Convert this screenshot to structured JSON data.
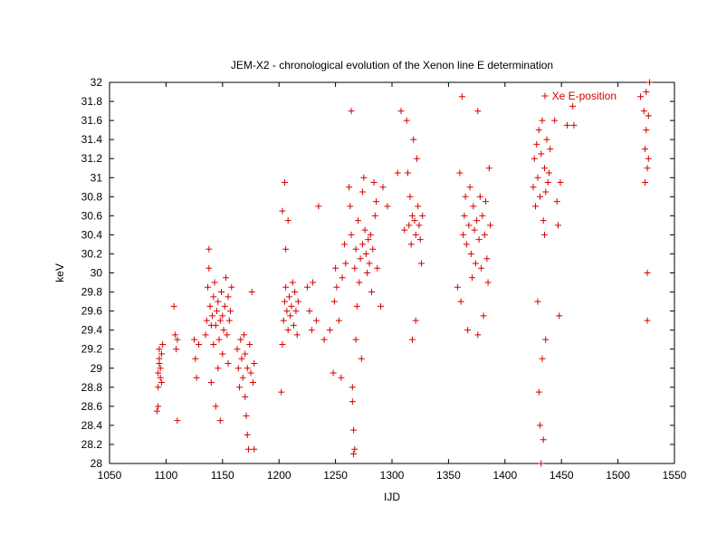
{
  "chart_data": {
    "type": "scatter",
    "title": "JEM-X2 -  chronological evolution of the Xenon line E determination",
    "xlabel": "IJD",
    "ylabel": "keV",
    "xlim": [
      1050,
      1550
    ],
    "ylim": [
      28,
      32
    ],
    "xticks": [
      1050,
      1100,
      1150,
      1200,
      1250,
      1300,
      1350,
      1400,
      1450,
      1500,
      1550
    ],
    "yticks": [
      28,
      28.2,
      28.4,
      28.6,
      28.8,
      29,
      29.2,
      29.4,
      29.6,
      29.8,
      30,
      30.2,
      30.4,
      30.6,
      30.8,
      31,
      31.2,
      31.4,
      31.6,
      31.8,
      32
    ],
    "ytick_labels": [
      "28",
      "28.2",
      "28.4",
      "28.6",
      "28.8",
      "29",
      "29.2",
      "29.4",
      "29.6",
      "29.8",
      "30",
      "30.2",
      "30.4",
      "30.6",
      "30.8",
      "31",
      "31.2",
      "31.4",
      "31.6",
      "31.8",
      "32"
    ],
    "grid": false,
    "legend_position": "top-right",
    "marker": "plus",
    "color": "#d40000",
    "series": [
      {
        "name": "Xe E-position",
        "points": [
          [
            1092,
            28.55
          ],
          [
            1093,
            28.6
          ],
          [
            1093,
            28.8
          ],
          [
            1093,
            28.95
          ],
          [
            1094,
            29.05
          ],
          [
            1094,
            29.1
          ],
          [
            1094,
            29.2
          ],
          [
            1095,
            28.9
          ],
          [
            1095,
            29.0
          ],
          [
            1096,
            28.85
          ],
          [
            1096,
            29.15
          ],
          [
            1097,
            29.25
          ],
          [
            1107,
            29.65
          ],
          [
            1108,
            29.35
          ],
          [
            1109,
            29.2
          ],
          [
            1110,
            29.3
          ],
          [
            1110,
            28.45
          ],
          [
            1125,
            29.3
          ],
          [
            1126,
            29.1
          ],
          [
            1127,
            28.9
          ],
          [
            1129,
            29.25
          ],
          [
            1135,
            29.35
          ],
          [
            1136,
            29.5
          ],
          [
            1137,
            29.85
          ],
          [
            1138,
            30.05
          ],
          [
            1138,
            30.25
          ],
          [
            1139,
            29.65
          ],
          [
            1140,
            29.45
          ],
          [
            1140,
            28.85
          ],
          [
            1141,
            29.55
          ],
          [
            1142,
            29.75
          ],
          [
            1142,
            29.25
          ],
          [
            1143,
            29.9
          ],
          [
            1144,
            29.45
          ],
          [
            1144,
            28.6
          ],
          [
            1145,
            29.6
          ],
          [
            1146,
            29.7
          ],
          [
            1146,
            29.0
          ],
          [
            1147,
            29.3
          ],
          [
            1148,
            29.5
          ],
          [
            1148,
            28.45
          ],
          [
            1149,
            29.8
          ],
          [
            1150,
            29.55
          ],
          [
            1150,
            29.15
          ],
          [
            1151,
            29.4
          ],
          [
            1152,
            29.65
          ],
          [
            1153,
            29.95
          ],
          [
            1154,
            29.35
          ],
          [
            1155,
            29.75
          ],
          [
            1155,
            29.05
          ],
          [
            1156,
            29.5
          ],
          [
            1157,
            29.6
          ],
          [
            1158,
            29.85
          ],
          [
            1163,
            29.2
          ],
          [
            1164,
            29.0
          ],
          [
            1165,
            28.8
          ],
          [
            1166,
            29.3
          ],
          [
            1167,
            29.1
          ],
          [
            1168,
            28.9
          ],
          [
            1169,
            29.35
          ],
          [
            1170,
            28.7
          ],
          [
            1170,
            29.15
          ],
          [
            1171,
            28.5
          ],
          [
            1172,
            29.0
          ],
          [
            1172,
            28.3
          ],
          [
            1173,
            28.15
          ],
          [
            1174,
            29.25
          ],
          [
            1175,
            28.95
          ],
          [
            1176,
            29.8
          ],
          [
            1177,
            28.85
          ],
          [
            1178,
            29.05
          ],
          [
            1178,
            28.15
          ],
          [
            1202,
            28.75
          ],
          [
            1203,
            29.25
          ],
          [
            1203,
            30.65
          ],
          [
            1204,
            29.5
          ],
          [
            1205,
            29.7
          ],
          [
            1205,
            30.95
          ],
          [
            1206,
            29.85
          ],
          [
            1206,
            30.25
          ],
          [
            1207,
            29.6
          ],
          [
            1208,
            29.4
          ],
          [
            1208,
            30.55
          ],
          [
            1209,
            29.75
          ],
          [
            1210,
            29.55
          ],
          [
            1211,
            29.65
          ],
          [
            1212,
            29.9
          ],
          [
            1213,
            29.45
          ],
          [
            1214,
            29.8
          ],
          [
            1215,
            29.6
          ],
          [
            1216,
            29.35
          ],
          [
            1217,
            29.7
          ],
          [
            1225,
            29.85
          ],
          [
            1227,
            29.6
          ],
          [
            1229,
            29.4
          ],
          [
            1230,
            29.9
          ],
          [
            1233,
            29.5
          ],
          [
            1235,
            30.7
          ],
          [
            1240,
            29.3
          ],
          [
            1245,
            29.4
          ],
          [
            1248,
            28.95
          ],
          [
            1249,
            29.7
          ],
          [
            1250,
            30.05
          ],
          [
            1251,
            29.85
          ],
          [
            1253,
            29.5
          ],
          [
            1255,
            28.9
          ],
          [
            1256,
            29.95
          ],
          [
            1258,
            30.3
          ],
          [
            1259,
            30.1
          ],
          [
            1262,
            30.9
          ],
          [
            1263,
            30.7
          ],
          [
            1264,
            31.7
          ],
          [
            1264,
            30.4
          ],
          [
            1265,
            28.8
          ],
          [
            1265,
            28.65
          ],
          [
            1266,
            28.35
          ],
          [
            1266,
            28.1
          ],
          [
            1267,
            30.05
          ],
          [
            1267,
            28.15
          ],
          [
            1268,
            29.3
          ],
          [
            1268,
            30.25
          ],
          [
            1269,
            29.65
          ],
          [
            1270,
            30.55
          ],
          [
            1271,
            29.9
          ],
          [
            1272,
            30.15
          ],
          [
            1273,
            29.1
          ],
          [
            1274,
            30.85
          ],
          [
            1274,
            30.3
          ],
          [
            1275,
            31.0
          ],
          [
            1276,
            30.45
          ],
          [
            1277,
            30.2
          ],
          [
            1278,
            30.0
          ],
          [
            1279,
            30.35
          ],
          [
            1280,
            30.1
          ],
          [
            1281,
            30.4
          ],
          [
            1282,
            29.8
          ],
          [
            1283,
            30.25
          ],
          [
            1284,
            30.95
          ],
          [
            1285,
            30.6
          ],
          [
            1286,
            30.75
          ],
          [
            1287,
            30.05
          ],
          [
            1290,
            29.65
          ],
          [
            1292,
            30.9
          ],
          [
            1296,
            30.7
          ],
          [
            1305,
            31.05
          ],
          [
            1308,
            31.7
          ],
          [
            1311,
            30.45
          ],
          [
            1313,
            31.6
          ],
          [
            1314,
            31.05
          ],
          [
            1315,
            30.5
          ],
          [
            1316,
            30.8
          ],
          [
            1317,
            30.3
          ],
          [
            1318,
            30.6
          ],
          [
            1318,
            29.3
          ],
          [
            1319,
            31.4
          ],
          [
            1320,
            30.55
          ],
          [
            1321,
            30.4
          ],
          [
            1321,
            29.5
          ],
          [
            1322,
            31.2
          ],
          [
            1323,
            30.7
          ],
          [
            1324,
            30.5
          ],
          [
            1325,
            30.35
          ],
          [
            1326,
            30.1
          ],
          [
            1327,
            30.6
          ],
          [
            1358,
            29.85
          ],
          [
            1360,
            31.05
          ],
          [
            1361,
            29.7
          ],
          [
            1362,
            31.85
          ],
          [
            1363,
            30.4
          ],
          [
            1364,
            30.6
          ],
          [
            1365,
            30.8
          ],
          [
            1366,
            30.3
          ],
          [
            1367,
            29.4
          ],
          [
            1368,
            30.5
          ],
          [
            1369,
            30.9
          ],
          [
            1370,
            30.2
          ],
          [
            1371,
            29.95
          ],
          [
            1372,
            30.7
          ],
          [
            1373,
            30.45
          ],
          [
            1374,
            30.1
          ],
          [
            1375,
            30.55
          ],
          [
            1376,
            31.7
          ],
          [
            1376,
            29.35
          ],
          [
            1377,
            30.35
          ],
          [
            1378,
            30.8
          ],
          [
            1379,
            30.05
          ],
          [
            1380,
            30.6
          ],
          [
            1381,
            29.55
          ],
          [
            1382,
            30.4
          ],
          [
            1383,
            30.75
          ],
          [
            1384,
            30.15
          ],
          [
            1385,
            29.9
          ],
          [
            1386,
            31.1
          ],
          [
            1387,
            30.5
          ],
          [
            1425,
            30.9
          ],
          [
            1426,
            31.2
          ],
          [
            1427,
            30.7
          ],
          [
            1428,
            31.35
          ],
          [
            1429,
            31.0
          ],
          [
            1429,
            29.7
          ],
          [
            1430,
            31.5
          ],
          [
            1430,
            28.75
          ],
          [
            1431,
            30.8
          ],
          [
            1431,
            28.4
          ],
          [
            1432,
            31.25
          ],
          [
            1432,
            28.0
          ],
          [
            1433,
            31.6
          ],
          [
            1433,
            29.1
          ],
          [
            1434,
            30.55
          ],
          [
            1434,
            28.25
          ],
          [
            1435,
            31.1
          ],
          [
            1435,
            30.4
          ],
          [
            1436,
            30.85
          ],
          [
            1436,
            29.3
          ],
          [
            1437,
            31.4
          ],
          [
            1438,
            30.95
          ],
          [
            1439,
            31.05
          ],
          [
            1440,
            31.3
          ],
          [
            1444,
            31.6
          ],
          [
            1446,
            30.75
          ],
          [
            1447,
            30.5
          ],
          [
            1448,
            29.55
          ],
          [
            1449,
            30.95
          ],
          [
            1455,
            31.55
          ],
          [
            1460,
            31.75
          ],
          [
            1461,
            31.55
          ],
          [
            1520,
            31.85
          ],
          [
            1523,
            31.7
          ],
          [
            1524,
            31.3
          ],
          [
            1524,
            30.95
          ],
          [
            1525,
            31.9
          ],
          [
            1525,
            31.5
          ],
          [
            1526,
            31.1
          ],
          [
            1526,
            30.0
          ],
          [
            1526,
            29.5
          ],
          [
            1527,
            31.65
          ],
          [
            1527,
            31.2
          ],
          [
            1528,
            32.0
          ]
        ]
      }
    ]
  }
}
